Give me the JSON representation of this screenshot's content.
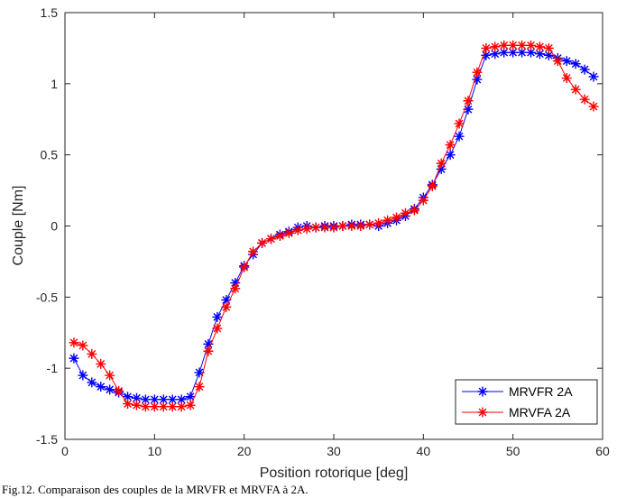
{
  "chart_data": {
    "type": "line",
    "title": "",
    "xlabel": "Position rotorique [deg]",
    "ylabel": "Couple [Nm]",
    "xlim": [
      0,
      60
    ],
    "ylim": [
      -1.5,
      1.5
    ],
    "xticks": [
      "0",
      "10",
      "20",
      "30",
      "40",
      "50",
      "60"
    ],
    "yticks": [
      "-1.5",
      "-1",
      "-0.5",
      "0",
      "0.5",
      "1",
      "1.5"
    ],
    "grid": false,
    "legend_position": "bottom-right",
    "x": [
      1,
      2,
      3,
      4,
      5,
      6,
      7,
      8,
      9,
      10,
      11,
      12,
      13,
      14,
      15,
      16,
      17,
      18,
      19,
      20,
      21,
      22,
      23,
      24,
      25,
      26,
      27,
      28,
      29,
      30,
      31,
      32,
      33,
      34,
      35,
      36,
      37,
      38,
      39,
      40,
      41,
      42,
      43,
      44,
      45,
      46,
      47,
      48,
      49,
      50,
      51,
      52,
      53,
      54,
      55,
      56,
      57,
      58,
      59
    ],
    "series": [
      {
        "name": "MRVFR 2A",
        "color": "#0000ff",
        "marker": "asterisk",
        "values": [
          -0.93,
          -1.05,
          -1.1,
          -1.13,
          -1.15,
          -1.17,
          -1.2,
          -1.21,
          -1.22,
          -1.22,
          -1.22,
          -1.22,
          -1.22,
          -1.2,
          -1.03,
          -0.83,
          -0.64,
          -0.52,
          -0.4,
          -0.28,
          -0.2,
          -0.12,
          -0.09,
          -0.06,
          -0.04,
          -0.01,
          0.0,
          -0.01,
          0.0,
          0.0,
          0.0,
          0.01,
          0.01,
          0.01,
          0.0,
          0.02,
          0.04,
          0.07,
          0.12,
          0.2,
          0.29,
          0.4,
          0.5,
          0.63,
          0.82,
          1.03,
          1.2,
          1.21,
          1.22,
          1.22,
          1.22,
          1.22,
          1.21,
          1.2,
          1.18,
          1.16,
          1.14,
          1.1,
          1.05
        ]
      },
      {
        "name": "MRVFA 2A",
        "color": "#ff0000",
        "marker": "asterisk",
        "values": [
          -0.82,
          -0.84,
          -0.9,
          -0.97,
          -1.05,
          -1.16,
          -1.25,
          -1.26,
          -1.27,
          -1.27,
          -1.27,
          -1.27,
          -1.27,
          -1.26,
          -1.13,
          -0.88,
          -0.72,
          -0.57,
          -0.44,
          -0.29,
          -0.18,
          -0.12,
          -0.09,
          -0.07,
          -0.05,
          -0.03,
          -0.02,
          -0.01,
          -0.01,
          -0.01,
          0.0,
          0.0,
          0.0,
          0.01,
          0.02,
          0.04,
          0.06,
          0.09,
          0.11,
          0.18,
          0.28,
          0.44,
          0.57,
          0.72,
          0.88,
          1.08,
          1.25,
          1.26,
          1.27,
          1.27,
          1.27,
          1.27,
          1.26,
          1.25,
          1.16,
          1.04,
          0.96,
          0.89,
          0.84
        ]
      }
    ]
  },
  "caption": "Fig.12. Comparaison des couples de la MRVFR et MRVFA à 2A."
}
